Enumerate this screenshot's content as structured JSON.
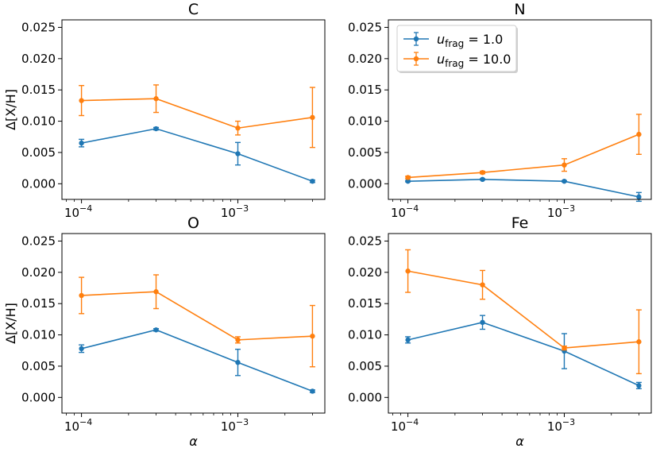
{
  "colors": {
    "blue": "#1f77b4",
    "orange": "#ff7f0e"
  },
  "legend": {
    "location": "upper-left of N panel",
    "entries": [
      {
        "var": "u",
        "sub": "frag",
        "rest": " = 1.0",
        "color": "#1f77b4"
      },
      {
        "var": "u",
        "sub": "frag",
        "rest": " = 10.0",
        "color": "#ff7f0e"
      }
    ]
  },
  "chart_data": [
    {
      "type": "line",
      "title": "C",
      "xlabel": "",
      "ylabel": "Δ[X/H]",
      "xscale": "log",
      "xlim": [
        7.5e-05,
        0.0036
      ],
      "ylim": [
        -0.0025,
        0.0262
      ],
      "yticks": [
        "0.000",
        "0.005",
        "0.010",
        "0.015",
        "0.020",
        "0.025"
      ],
      "xticks": [
        {
          "base": "10",
          "exp": "−4"
        },
        {
          "base": "10",
          "exp": "−3"
        }
      ],
      "x": [
        0.0001,
        0.0003,
        0.001,
        0.003
      ],
      "series": [
        {
          "name": "u_frag = 1.0",
          "color": "#1f77b4",
          "values": [
            0.0065,
            0.0088,
            0.0048,
            0.0004
          ],
          "errors": [
            0.0006,
            0.0002,
            0.0018,
            0.0002
          ]
        },
        {
          "name": "u_frag = 10.0",
          "color": "#ff7f0e",
          "values": [
            0.0133,
            0.0136,
            0.0089,
            0.0106
          ],
          "errors": [
            0.0024,
            0.0022,
            0.0011,
            0.0048
          ]
        }
      ]
    },
    {
      "type": "line",
      "title": "N",
      "xlabel": "",
      "ylabel": "",
      "xscale": "log",
      "xlim": [
        7.5e-05,
        0.0036
      ],
      "ylim": [
        -0.0025,
        0.0262
      ],
      "yticks": [
        "0.000",
        "0.005",
        "0.010",
        "0.015",
        "0.020",
        "0.025"
      ],
      "xticks": [
        {
          "base": "10",
          "exp": "−4"
        },
        {
          "base": "10",
          "exp": "−3"
        }
      ],
      "x": [
        0.0001,
        0.0003,
        0.001,
        0.003
      ],
      "series": [
        {
          "name": "u_frag = 1.0",
          "color": "#1f77b4",
          "values": [
            0.0004,
            0.0007,
            0.0004,
            -0.0021
          ],
          "errors": [
            0.0001,
            0.0001,
            0.0001,
            0.0007
          ]
        },
        {
          "name": "u_frag = 10.0",
          "color": "#ff7f0e",
          "values": [
            0.001,
            0.0018,
            0.003,
            0.0079
          ],
          "errors": [
            0.0002,
            0.0002,
            0.001,
            0.0032
          ]
        }
      ]
    },
    {
      "type": "line",
      "title": "O",
      "xlabel": "α",
      "ylabel": "Δ[X/H]",
      "xscale": "log",
      "xlim": [
        7.5e-05,
        0.0036
      ],
      "ylim": [
        -0.0025,
        0.0262
      ],
      "yticks": [
        "0.000",
        "0.005",
        "0.010",
        "0.015",
        "0.020",
        "0.025"
      ],
      "xticks": [
        {
          "base": "10",
          "exp": "−4"
        },
        {
          "base": "10",
          "exp": "−3"
        }
      ],
      "x": [
        0.0001,
        0.0003,
        0.001,
        0.003
      ],
      "series": [
        {
          "name": "u_frag = 1.0",
          "color": "#1f77b4",
          "values": [
            0.0078,
            0.0108,
            0.0056,
            0.001
          ],
          "errors": [
            0.0006,
            0.0002,
            0.0021,
            0.0002
          ]
        },
        {
          "name": "u_frag = 10.0",
          "color": "#ff7f0e",
          "values": [
            0.0163,
            0.0169,
            0.0092,
            0.0098
          ],
          "errors": [
            0.0029,
            0.0027,
            0.0005,
            0.0049
          ]
        }
      ]
    },
    {
      "type": "line",
      "title": "Fe",
      "xlabel": "α",
      "ylabel": "",
      "xscale": "log",
      "xlim": [
        7.5e-05,
        0.0036
      ],
      "ylim": [
        -0.0025,
        0.0262
      ],
      "yticks": [
        "0.000",
        "0.005",
        "0.010",
        "0.015",
        "0.020",
        "0.025"
      ],
      "xticks": [
        {
          "base": "10",
          "exp": "−4"
        },
        {
          "base": "10",
          "exp": "−3"
        }
      ],
      "x": [
        0.0001,
        0.0003,
        0.001,
        0.003
      ],
      "series": [
        {
          "name": "u_frag = 1.0",
          "color": "#1f77b4",
          "values": [
            0.0092,
            0.012,
            0.0074,
            0.0019
          ],
          "errors": [
            0.0005,
            0.0011,
            0.0028,
            0.0005
          ]
        },
        {
          "name": "u_frag = 10.0",
          "color": "#ff7f0e",
          "values": [
            0.0202,
            0.018,
            0.0079,
            0.0089
          ],
          "errors": [
            0.0034,
            0.0023,
            0.0003,
            0.0051
          ]
        }
      ]
    }
  ]
}
